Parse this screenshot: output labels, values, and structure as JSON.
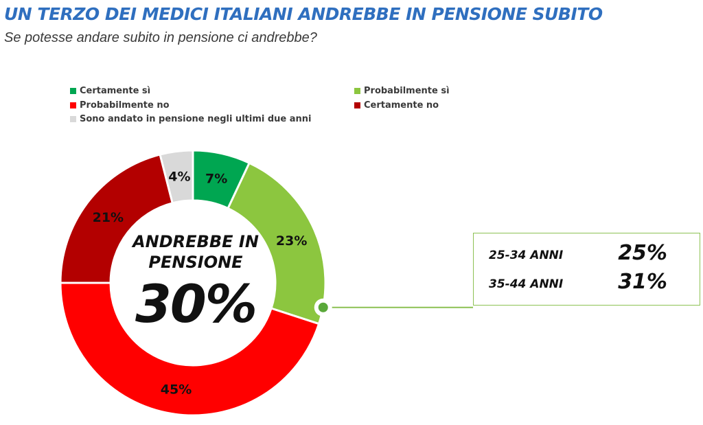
{
  "header": {
    "title": "UN TERZO DEI MEDICI ITALIANI ANDREBBE IN PENSIONE SUBITO",
    "subtitle": "Se potesse andare subito in pensione ci andrebbe?"
  },
  "chart_data": {
    "type": "pie",
    "variant": "donut",
    "categories": [
      "Certamente sì",
      "Probabilmente sì",
      "Probabilmente no",
      "Certamente no",
      "Sono andato in pensione negli ultimi due anni"
    ],
    "values": [
      7,
      23,
      45,
      21,
      4
    ],
    "value_labels": [
      "7%",
      "23%",
      "45%",
      "21%",
      "4%"
    ],
    "colors": [
      "#00a651",
      "#8cc63f",
      "#ff0000",
      "#b30000",
      "#d9d9d9"
    ],
    "legend_position": "top",
    "center": {
      "label": "ANDREBBE IN PENSIONE",
      "value": "30%"
    }
  },
  "callout": {
    "rows": [
      {
        "age": "25-34 ANNI",
        "pct": "25%"
      },
      {
        "age": "35-44 ANNI",
        "pct": "31%"
      }
    ],
    "border_color": "#8cc152"
  }
}
